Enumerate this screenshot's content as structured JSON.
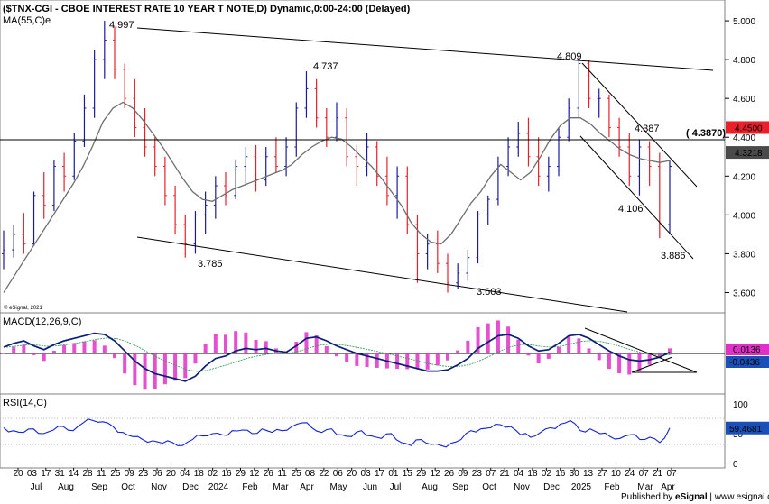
{
  "header": {
    "title": "($TNX-CGI - CBOE INTEREST RATE 10 YEAR T NOTE,D) Dynamic,0:00-24:00 (Delayed)",
    "ma_label": "MA(55,C)e",
    "copyright": "© eSignal, 2021",
    "published_by": "Published by ",
    "published_brand": "eSignal",
    "published_site": " | www.esignal.com"
  },
  "colors": {
    "up": "#1a1aa0",
    "down": "#e8202a",
    "ma": "#6e6e6e",
    "trend": "#000000",
    "macd_line": "#0a1e78",
    "macd_signal": "#3aa05a",
    "macd_hist": "#e030c8",
    "rsi_line": "#1020e0",
    "badge_red": "#e8202a",
    "badge_gray": "#4a4a4a",
    "badge_magenta": "#e030c8",
    "badge_blue": "#1a4fb8"
  },
  "chart_data": [
    {
      "type": "line",
      "y_ticks": [
        "5.000",
        "4.800",
        "4.600",
        "4.400",
        "4.200",
        "4.000",
        "3.800",
        "3.600"
      ],
      "ylim": [
        3.5,
        5.07
      ],
      "x_tick_labels": [
        "20",
        "03",
        "17",
        "31",
        "14",
        "28",
        "11",
        "25",
        "09",
        "23",
        "06",
        "20",
        "04",
        "18",
        "02",
        "16",
        "29",
        "12",
        "26",
        "11",
        "25",
        "08",
        "22",
        "06",
        "20",
        "03",
        "17",
        "01",
        "15",
        "29",
        "12",
        "26",
        "09",
        "23",
        "07",
        "21",
        "04",
        "18",
        "02",
        "16",
        "30",
        "13",
        "27",
        "10",
        "24",
        "07",
        "21",
        "07"
      ],
      "month_labels": [
        "Jul",
        "Aug",
        "Sep",
        "Oct",
        "Nov",
        "Dec",
        "2024",
        "Feb",
        "Mar",
        "Apr",
        "May",
        "Jun",
        "Jul",
        "Aug",
        "Sep",
        "Oct",
        "Nov",
        "Dec",
        "2025",
        "Feb",
        "Mar",
        "Apr"
      ],
      "price_ohlc_series": [
        [
          3.8,
          3.92,
          3.72,
          3.82
        ],
        [
          3.82,
          3.95,
          3.78,
          3.9
        ],
        [
          3.9,
          4.01,
          3.8,
          3.85
        ],
        [
          3.85,
          4.12,
          3.84,
          4.1
        ],
        [
          4.1,
          4.22,
          3.98,
          4.05
        ],
        [
          4.05,
          4.28,
          4.02,
          4.25
        ],
        [
          4.25,
          4.32,
          4.12,
          4.2
        ],
        [
          4.2,
          4.42,
          4.18,
          4.38
        ],
        [
          4.38,
          4.62,
          4.35,
          4.55
        ],
        [
          4.55,
          4.85,
          4.5,
          4.8
        ],
        [
          4.8,
          5.0,
          4.7,
          4.9
        ],
        [
          4.9,
          4.97,
          4.7,
          4.75
        ],
        [
          4.75,
          4.78,
          4.55,
          4.6
        ],
        [
          4.6,
          4.7,
          4.4,
          4.45
        ],
        [
          4.45,
          4.55,
          4.3,
          4.35
        ],
        [
          4.35,
          4.4,
          4.2,
          4.25
        ],
        [
          4.25,
          4.3,
          4.05,
          4.1
        ],
        [
          4.1,
          4.15,
          3.9,
          3.95
        ],
        [
          3.95,
          4.0,
          3.78,
          3.85
        ],
        [
          3.85,
          4.02,
          3.8,
          4.0
        ],
        [
          4.0,
          4.12,
          3.9,
          4.05
        ],
        [
          4.05,
          4.2,
          3.98,
          4.15
        ],
        [
          4.15,
          4.22,
          4.05,
          4.1
        ],
        [
          4.1,
          4.28,
          4.08,
          4.25
        ],
        [
          4.25,
          4.35,
          4.15,
          4.3
        ],
        [
          4.3,
          4.36,
          4.12,
          4.18
        ],
        [
          4.18,
          4.35,
          4.15,
          4.3
        ],
        [
          4.3,
          4.4,
          4.22,
          4.25
        ],
        [
          4.25,
          4.4,
          4.2,
          4.35
        ],
        [
          4.35,
          4.58,
          4.3,
          4.55
        ],
        [
          4.55,
          4.74,
          4.5,
          4.65
        ],
        [
          4.65,
          4.7,
          4.45,
          4.5
        ],
        [
          4.5,
          4.55,
          4.35,
          4.4
        ],
        [
          4.4,
          4.58,
          4.38,
          4.5
        ],
        [
          4.5,
          4.55,
          4.25,
          4.3
        ],
        [
          4.3,
          4.36,
          4.15,
          4.25
        ],
        [
          4.25,
          4.42,
          4.2,
          4.35
        ],
        [
          4.35,
          4.38,
          4.15,
          4.2
        ],
        [
          4.2,
          4.3,
          4.05,
          4.1
        ],
        [
          4.1,
          4.25,
          3.98,
          4.2
        ],
        [
          4.2,
          4.25,
          3.9,
          3.95
        ],
        [
          3.95,
          4.0,
          3.65,
          3.8
        ],
        [
          3.8,
          3.9,
          3.72,
          3.85
        ],
        [
          3.85,
          3.92,
          3.7,
          3.75
        ],
        [
          3.75,
          3.8,
          3.6,
          3.65
        ],
        [
          3.65,
          3.75,
          3.62,
          3.7
        ],
        [
          3.7,
          3.82,
          3.66,
          3.78
        ],
        [
          3.78,
          4.02,
          3.75,
          4.0
        ],
        [
          4.0,
          4.1,
          3.95,
          4.08
        ],
        [
          4.08,
          4.3,
          4.05,
          4.25
        ],
        [
          4.25,
          4.4,
          4.2,
          4.35
        ],
        [
          4.35,
          4.48,
          4.3,
          4.42
        ],
        [
          4.42,
          4.5,
          4.25,
          4.3
        ],
        [
          4.3,
          4.4,
          4.15,
          4.2
        ],
        [
          4.2,
          4.3,
          4.12,
          4.25
        ],
        [
          4.25,
          4.45,
          4.2,
          4.4
        ],
        [
          4.4,
          4.6,
          4.38,
          4.55
        ],
        [
          4.55,
          4.82,
          4.5,
          4.78
        ],
        [
          4.78,
          4.8,
          4.55,
          4.6
        ],
        [
          4.6,
          4.65,
          4.5,
          4.6
        ],
        [
          4.6,
          4.62,
          4.4,
          4.45
        ],
        [
          4.45,
          4.5,
          4.3,
          4.35
        ],
        [
          4.35,
          4.42,
          4.15,
          4.2
        ],
        [
          4.2,
          4.39,
          4.1,
          4.35
        ],
        [
          4.35,
          4.38,
          4.15,
          4.25
        ],
        [
          4.25,
          4.32,
          3.88,
          3.95
        ],
        [
          3.95,
          4.28,
          3.9,
          4.25
        ]
      ],
      "ma_55_series": [
        3.6,
        3.68,
        3.76,
        3.84,
        3.92,
        4.0,
        4.08,
        4.16,
        4.25,
        4.36,
        4.48,
        4.55,
        4.58,
        4.55,
        4.49,
        4.42,
        4.35,
        4.27,
        4.19,
        4.12,
        4.08,
        4.07,
        4.1,
        4.13,
        4.15,
        4.17,
        4.19,
        4.21,
        4.23,
        4.26,
        4.31,
        4.35,
        4.38,
        4.4,
        4.39,
        4.35,
        4.3,
        4.25,
        4.19,
        4.12,
        4.05,
        3.96,
        3.9,
        3.86,
        3.85,
        3.9,
        3.98,
        4.06,
        4.12,
        4.2,
        4.26,
        4.22,
        4.18,
        4.22,
        4.3,
        4.39,
        4.46,
        4.5,
        4.5,
        4.47,
        4.42,
        4.38,
        4.34,
        4.31,
        4.29,
        4.28,
        4.27,
        4.28
      ],
      "annotations": [
        {
          "label": "4.997",
          "value": 4.997
        },
        {
          "label": "4.737",
          "value": 4.737
        },
        {
          "label": "4.809",
          "value": 4.809
        },
        {
          "label": "4.387",
          "value": 4.387
        },
        {
          "label": "4.106",
          "value": 4.106
        },
        {
          "label": "3.785",
          "value": 3.785
        },
        {
          "label": "3.603",
          "value": 3.603
        },
        {
          "label": "3.886",
          "value": 3.886
        }
      ],
      "horizontal_level": {
        "value": 4.387,
        "label": "( 4.3870)"
      },
      "badges": [
        {
          "label": "4.4500",
          "value": 4.45
        },
        {
          "label": "4.3218",
          "value": 4.3218
        }
      ]
    },
    {
      "type": "line",
      "title": "MACD(12,26,9,C)",
      "macd_series": [
        0.05,
        0.08,
        0.1,
        0.06,
        0.03,
        0.07,
        0.1,
        0.12,
        0.14,
        0.16,
        0.15,
        0.1,
        0.02,
        -0.06,
        -0.12,
        -0.16,
        -0.18,
        -0.2,
        -0.22,
        -0.18,
        -0.1,
        -0.04,
        -0.02,
        0.02,
        0.04,
        0.03,
        0.04,
        0.02,
        0.01,
        0.06,
        0.12,
        0.13,
        0.1,
        0.06,
        0.03,
        0.0,
        -0.02,
        -0.04,
        -0.06,
        -0.08,
        -0.1,
        -0.12,
        -0.14,
        -0.14,
        -0.13,
        -0.09,
        -0.04,
        0.04,
        0.09,
        0.14,
        0.15,
        0.12,
        0.06,
        0.02,
        0.03,
        0.08,
        0.14,
        0.15,
        0.12,
        0.07,
        0.02,
        -0.02,
        -0.05,
        -0.06,
        -0.05,
        -0.03,
        0.01
      ],
      "badges": [
        {
          "label": "0.0136"
        },
        {
          "label": "-0.0436"
        }
      ]
    },
    {
      "type": "line",
      "title": "RSI(14,C)",
      "y_ticks": [
        "100",
        "50",
        "0"
      ],
      "ylim": [
        0,
        100
      ],
      "rsi_series": [
        60,
        55,
        52,
        58,
        50,
        56,
        62,
        55,
        68,
        72,
        70,
        62,
        52,
        45,
        40,
        38,
        34,
        35,
        30,
        40,
        46,
        50,
        48,
        55,
        56,
        50,
        58,
        52,
        55,
        62,
        68,
        60,
        52,
        58,
        48,
        45,
        55,
        46,
        42,
        50,
        35,
        30,
        40,
        32,
        30,
        34,
        40,
        55,
        58,
        60,
        65,
        62,
        48,
        44,
        52,
        60,
        66,
        72,
        55,
        58,
        50,
        45,
        42,
        48,
        40,
        44,
        35,
        59.47
      ],
      "badge": {
        "label": "59.4681",
        "value": 59.4681
      }
    }
  ]
}
